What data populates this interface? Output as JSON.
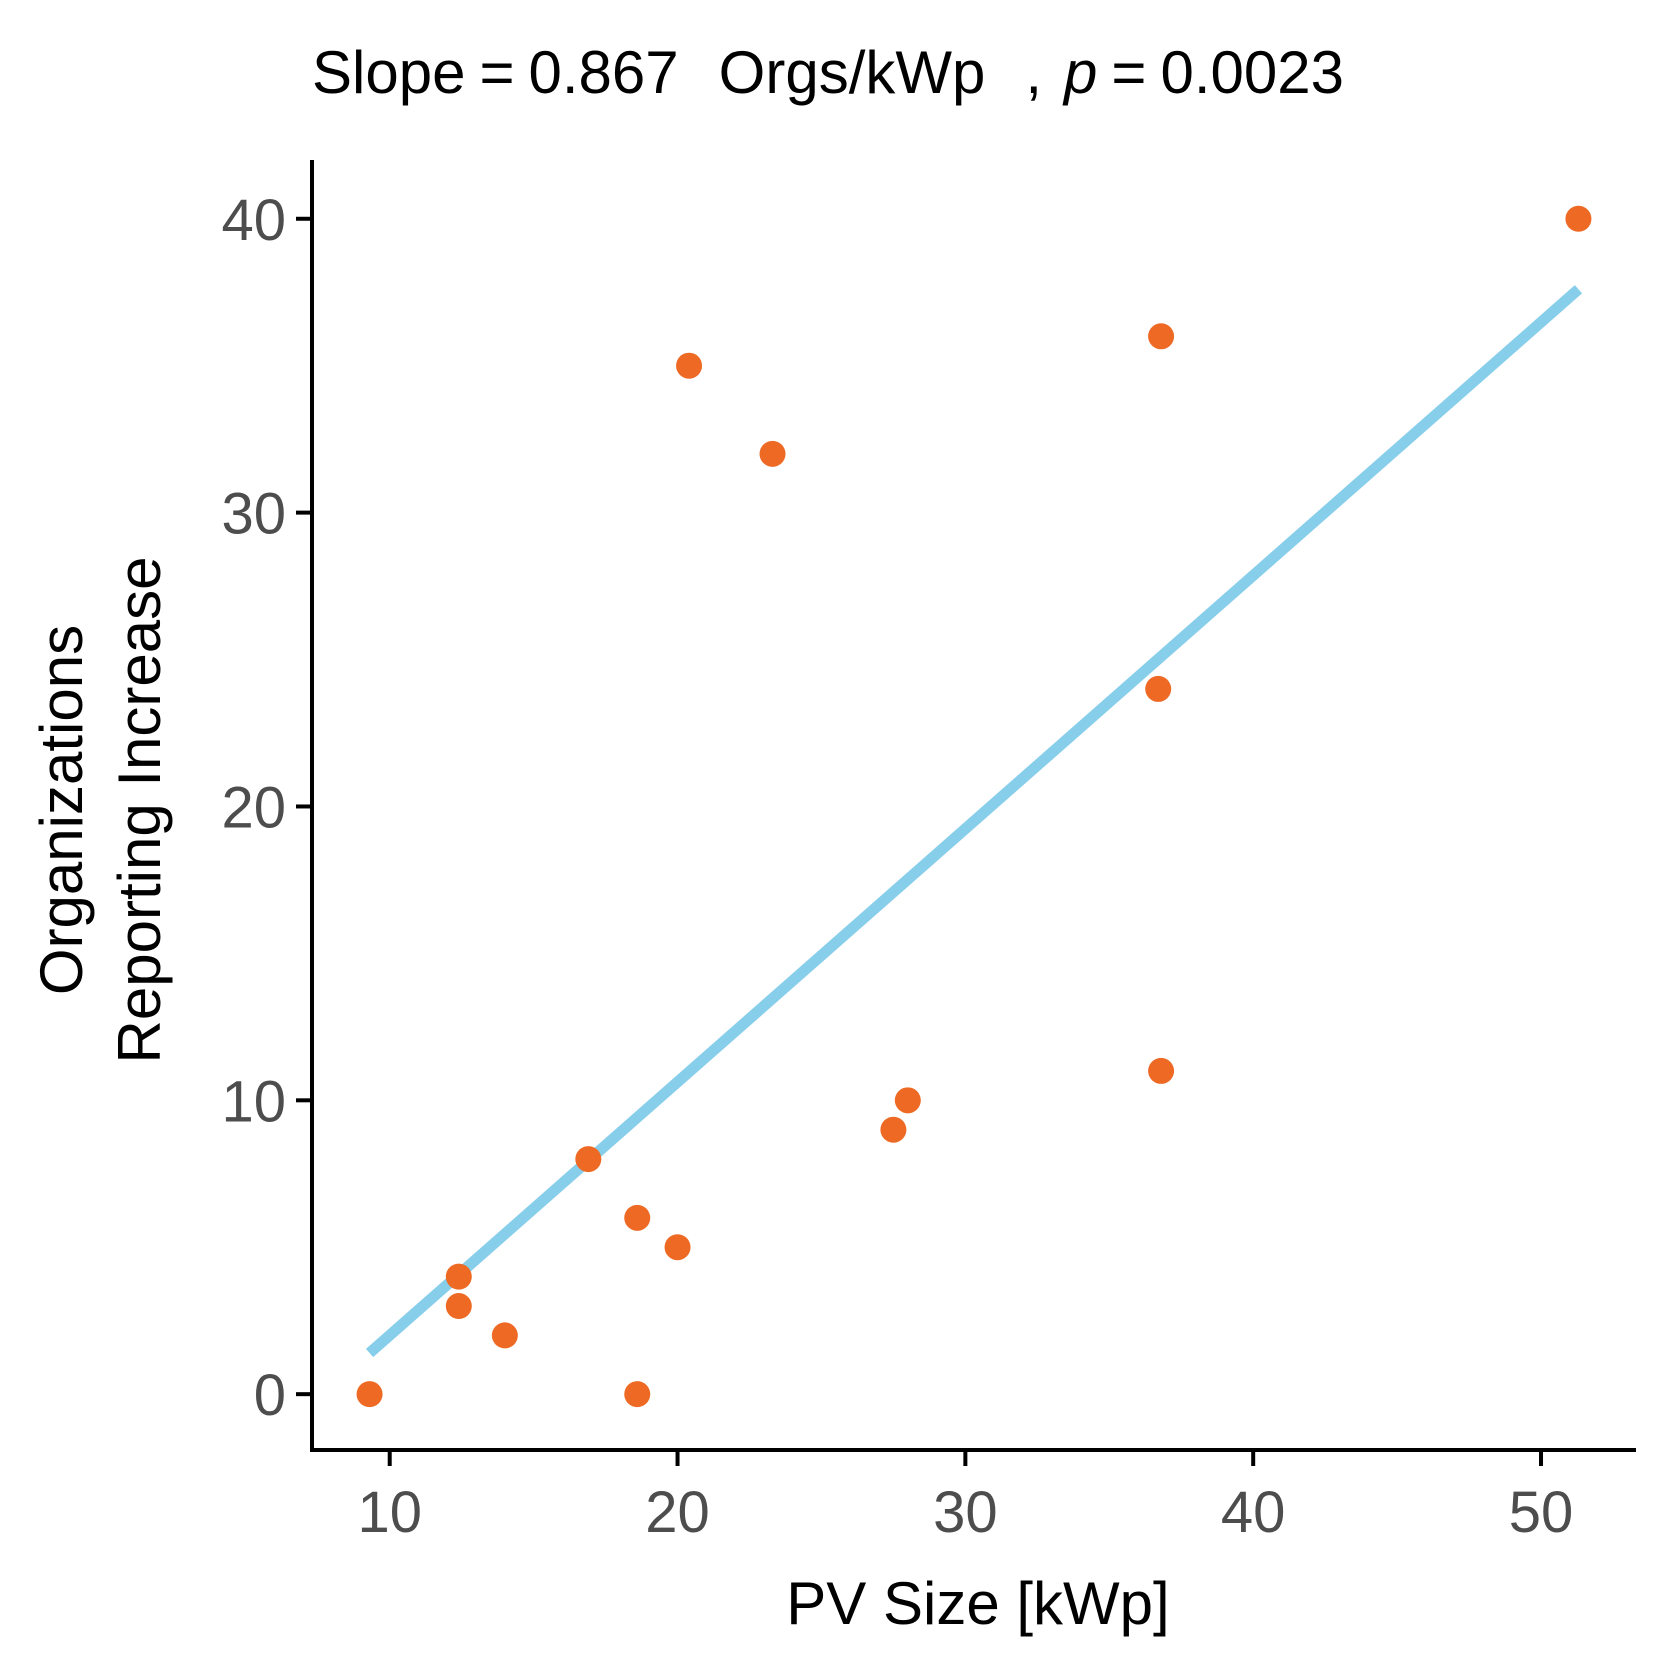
{
  "chart_data": {
    "type": "scatter",
    "title": {
      "slope_label": "Slope",
      "equals": "=",
      "slope_value": "0.867",
      "unit": "Orgs/kWp",
      "separator": ",",
      "p_label": "p",
      "p_value": "0.0023"
    },
    "xlabel": "PV Size [kWp]",
    "ylabel_line1": "Organizations",
    "ylabel_line2": "Reporting Increase",
    "xlim": [
      7.3,
      53.3
    ],
    "ylim": [
      -1.9,
      42.0
    ],
    "x_ticks": [
      10,
      20,
      30,
      40,
      50
    ],
    "y_ticks": [
      0,
      10,
      20,
      30,
      40
    ],
    "x_tick_labels": [
      "10",
      "20",
      "30",
      "40",
      "50"
    ],
    "y_tick_labels": [
      "0",
      "10",
      "20",
      "30",
      "40"
    ],
    "grid": false,
    "points": [
      {
        "x": 9.3,
        "y": 0
      },
      {
        "x": 12.4,
        "y": 4
      },
      {
        "x": 12.4,
        "y": 3
      },
      {
        "x": 14.0,
        "y": 2
      },
      {
        "x": 16.9,
        "y": 8
      },
      {
        "x": 18.6,
        "y": 6
      },
      {
        "x": 18.6,
        "y": 0
      },
      {
        "x": 20.0,
        "y": 5
      },
      {
        "x": 20.4,
        "y": 35
      },
      {
        "x": 23.3,
        "y": 32
      },
      {
        "x": 27.5,
        "y": 9
      },
      {
        "x": 28.0,
        "y": 10
      },
      {
        "x": 36.8,
        "y": 36
      },
      {
        "x": 36.7,
        "y": 24
      },
      {
        "x": 36.8,
        "y": 11
      },
      {
        "x": 51.3,
        "y": 40
      }
    ],
    "fit_line": {
      "x": [
        9.3,
        51.3
      ],
      "y": [
        1.4,
        37.6
      ]
    },
    "colors": {
      "points": "#EE6A24",
      "fit_line": "#87CEEB",
      "axis": "#000000",
      "tick_label": "#4d4d4d"
    }
  }
}
